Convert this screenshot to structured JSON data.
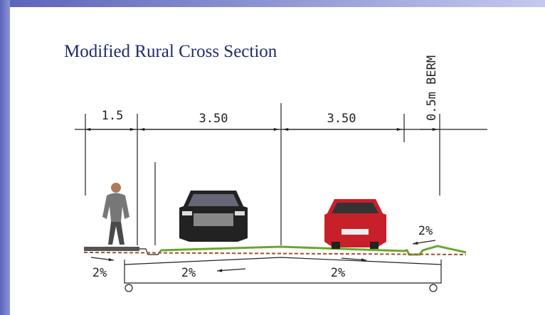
{
  "title": "Modified Rural Cross Section",
  "berm_label": "0.5m BERM",
  "dimensions": [
    "1.5",
    "3.50",
    "3.50"
  ],
  "slopes": [
    "2%",
    "2%",
    "2%",
    "2%"
  ]
}
